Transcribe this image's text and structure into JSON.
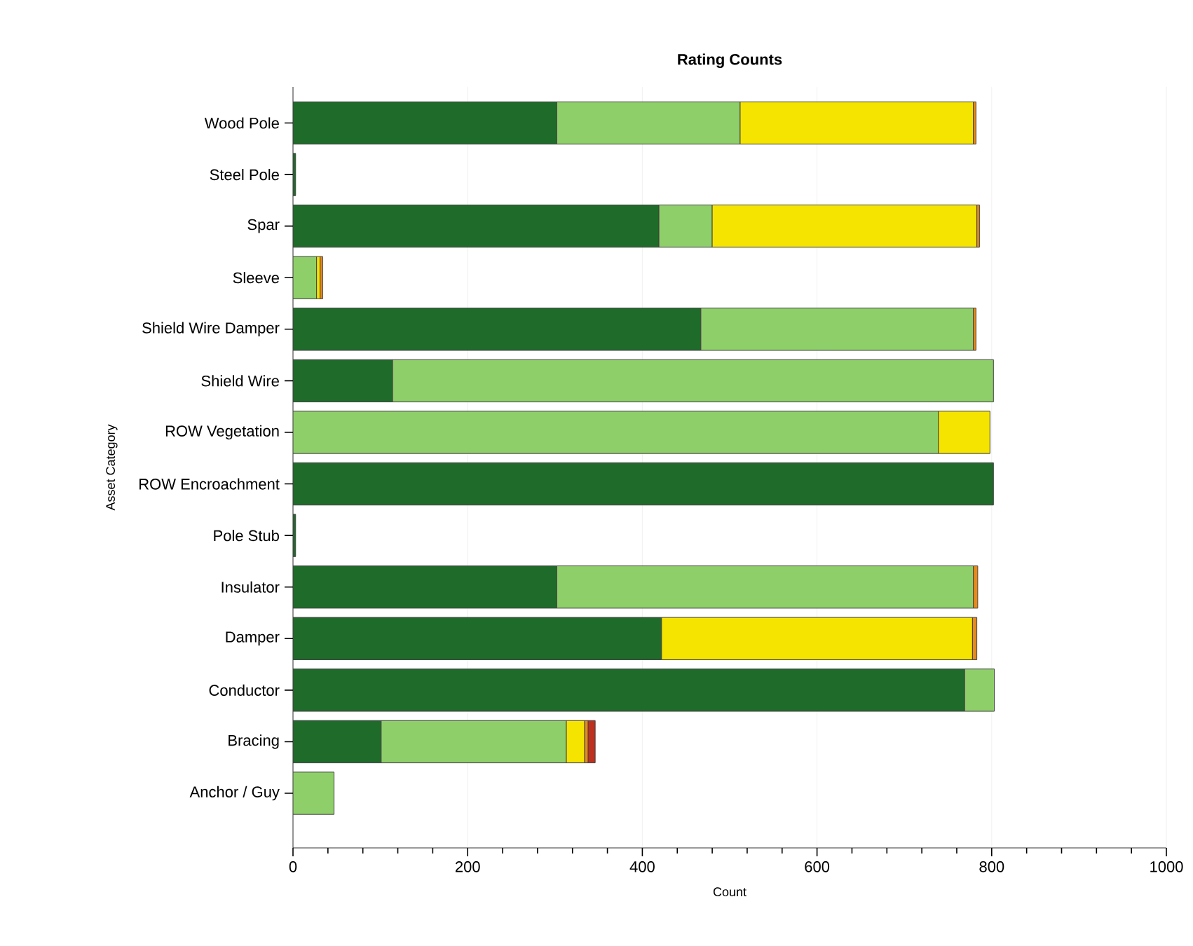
{
  "chart_data": {
    "type": "bar",
    "orientation": "horizontal",
    "stacked": true,
    "title": "Rating Counts",
    "xlabel": "Count",
    "ylabel": "Asset Category",
    "categories": [
      "Wood Pole",
      "Steel Pole",
      "Spar",
      "Sleeve",
      "Shield Wire Damper",
      "Shield Wire",
      "ROW Vegetation",
      "ROW Encroachment",
      "Pole Stub",
      "Insulator",
      "Damper",
      "Conductor",
      "Bracing",
      "Anchor / Guy"
    ],
    "series": [
      {
        "color": "#1e6b2a",
        "values": [
          302,
          3,
          419,
          null,
          467,
          114,
          null,
          802,
          3,
          302,
          422,
          769,
          101,
          null
        ]
      },
      {
        "color": "#8fcf6a",
        "values": [
          210,
          null,
          61,
          27,
          312,
          688,
          739,
          null,
          null,
          477,
          null,
          34,
          212,
          47
        ]
      },
      {
        "color": "#f5e400",
        "values": [
          267,
          null,
          303,
          4,
          null,
          null,
          59,
          null,
          null,
          null,
          356,
          null,
          21,
          null
        ]
      },
      {
        "color": "#e88a1a",
        "values": [
          3,
          null,
          3,
          3,
          3,
          null,
          null,
          null,
          null,
          5,
          5,
          null,
          4,
          null
        ]
      },
      {
        "color": "#c0301e",
        "values": [
          null,
          null,
          null,
          null,
          null,
          null,
          null,
          null,
          null,
          null,
          null,
          null,
          8,
          null
        ]
      }
    ],
    "xlim": [
      0,
      1000
    ],
    "xticks": [
      0,
      {
        "value": 40,
        "label": null
      },
      {
        "value": 80,
        "label": null
      },
      {
        "value": 120,
        "label": null
      },
      {
        "value": 160,
        "label": null
      },
      200,
      {
        "value": 240,
        "label": null
      },
      {
        "value": 280,
        "label": null
      },
      {
        "value": 320,
        "label": null
      },
      {
        "value": 360,
        "label": null
      },
      400,
      {
        "value": 440,
        "label": null
      },
      {
        "value": 480,
        "label": null
      },
      {
        "value": 520,
        "label": null
      },
      {
        "value": 560,
        "label": null
      },
      600,
      {
        "value": 640,
        "label": null
      },
      {
        "value": 680,
        "label": null
      },
      {
        "value": 720,
        "label": null
      },
      {
        "value": 760,
        "label": null
      },
      800,
      {
        "value": 840,
        "label": null
      },
      {
        "value": 880,
        "label": null
      },
      {
        "value": 920,
        "label": null
      },
      {
        "value": 960,
        "label": null
      },
      1000
    ],
    "grid": "x"
  }
}
